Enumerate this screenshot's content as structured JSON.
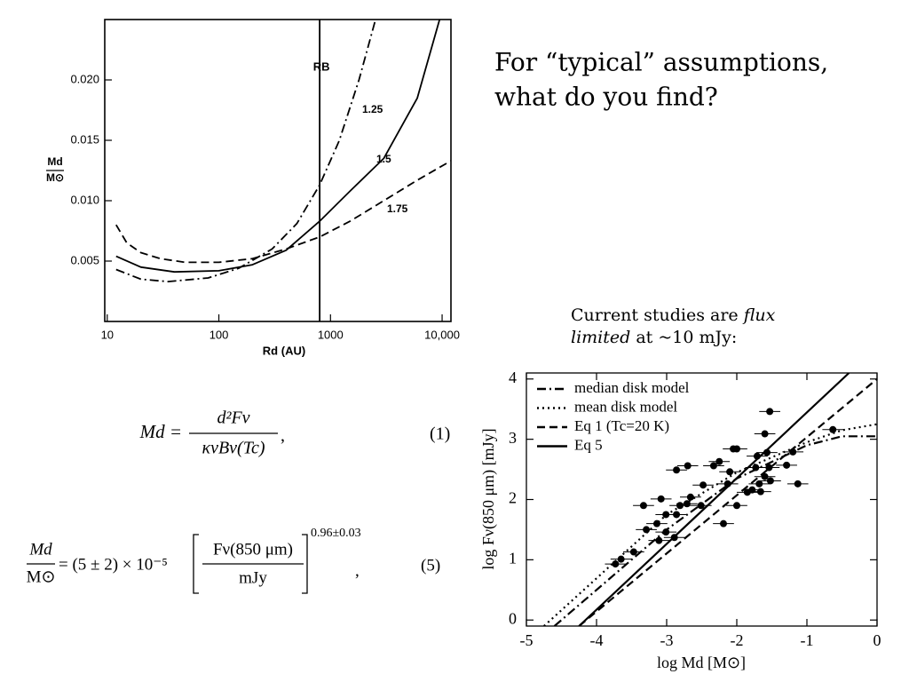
{
  "heading": {
    "lines": [
      "For “typical” assumptions,",
      "what do you find?"
    ]
  },
  "caption": {
    "line1": [
      "Current studies are ",
      "flux"
    ],
    "line2": [
      "limited",
      " at ~10 mJy:"
    ]
  },
  "equations": [
    {
      "lhs": "Md =",
      "numerator": "d²Fν",
      "denominator": "κνBν(Tc)",
      "trail": ",",
      "number": "(1)"
    },
    {
      "lhs_numerator": "Md",
      "lhs_denominator": "M⊙",
      "coefficient": "= (5 ± 2) × 10⁻⁵",
      "numerator": "Fν(850 μm)",
      "denominator": "mJy",
      "exponent": "0.96±0.03",
      "trail": ",",
      "number": "(5)"
    }
  ],
  "chart_data": [
    {
      "type": "line",
      "xlabel": "Rd (AU)",
      "ylabel_numerator": "Md",
      "ylabel_denominator": "M⊙",
      "xscale": "log",
      "xlim": [
        9.5,
        12000
      ],
      "ylim": [
        0,
        0.025
      ],
      "xticks": [
        10,
        100,
        1000,
        {
          "value": 10000,
          "label": "10,000"
        }
      ],
      "yticks": [
        0.005,
        {
          "value": 0.01,
          "label": "0.010"
        },
        0.015,
        {
          "value": 0.02,
          "label": "0.020"
        }
      ],
      "vline": {
        "label": "RB",
        "x": 800
      },
      "series": [
        {
          "name": "1.25",
          "color": "#000000",
          "style": "dashdot",
          "x": [
            12,
            20,
            35,
            80,
            150,
            300,
            500,
            800,
            1200,
            1800,
            2500
          ],
          "values": [
            0.0043,
            0.0035,
            0.0033,
            0.0036,
            0.0044,
            0.006,
            0.0081,
            0.0113,
            0.015,
            0.02,
            0.0248
          ]
        },
        {
          "name": "1.5",
          "color": "#000000",
          "style": "solid",
          "x": [
            12,
            20,
            40,
            100,
            200,
            400,
            800,
            1500,
            3000,
            6000,
            9500
          ],
          "values": [
            0.0054,
            0.0045,
            0.0041,
            0.0042,
            0.0047,
            0.0059,
            0.0083,
            0.0108,
            0.0135,
            0.0185,
            0.025
          ]
        },
        {
          "name": "1.75",
          "color": "#000000",
          "style": "dashed",
          "x": [
            12,
            15,
            20,
            30,
            50,
            100,
            200,
            400,
            800,
            1500,
            3000,
            6000,
            12000
          ],
          "values": [
            0.008,
            0.0065,
            0.0057,
            0.0052,
            0.0049,
            0.0049,
            0.0052,
            0.006,
            0.007,
            0.0083,
            0.01,
            0.0117,
            0.0133
          ]
        }
      ]
    },
    {
      "type": "scatter",
      "xlabel": "log Md [M⊙]",
      "ylabel": "log Fν(850 μm) [mJy]",
      "xlim": [
        -5,
        0
      ],
      "ylim": [
        -0.1,
        4.1
      ],
      "xticks": [
        -5,
        -4,
        -3,
        -2,
        -1,
        0
      ],
      "yticks": [
        0,
        1,
        2,
        3,
        4
      ],
      "legend": "upper left",
      "series": [
        {
          "name": "median disk model",
          "color": "#000000",
          "style": "dashdot",
          "x": [
            -4.6,
            -3,
            -2,
            -1,
            -0.5,
            0
          ],
          "values": [
            -0.1,
            1.5,
            2.35,
            2.9,
            3.05,
            3.05
          ]
        },
        {
          "name": "mean disk model",
          "color": "#000000",
          "style": "dotted",
          "x": [
            -4.75,
            -3,
            -2,
            -1,
            -0.5,
            0
          ],
          "values": [
            -0.1,
            1.75,
            2.45,
            2.95,
            3.15,
            3.25
          ]
        },
        {
          "name": "Eq 1 (Tc=20 K)",
          "color": "#000000",
          "style": "dashed",
          "x": [
            -4.25,
            0
          ],
          "values": [
            -0.1,
            4.0
          ]
        },
        {
          "name": "Eq 5",
          "color": "#000000",
          "style": "solid",
          "x": [
            -4.25,
            -0.4
          ],
          "values": [
            -0.1,
            4.1
          ]
        }
      ],
      "points": {
        "color": "#000000",
        "xerr": 0.15,
        "x": [
          -0.63,
          -1.53,
          -1.6,
          -2.05,
          -2.0,
          -1.13,
          -1.57,
          -1.2,
          -1.29,
          -1.71,
          -1.73,
          -1.54,
          -1.52,
          -1.6,
          -1.68,
          -1.78,
          -1.85,
          -1.66,
          -2.1,
          -2.13,
          -2.25,
          -2.33,
          -2.48,
          -2.7,
          -2.86,
          -2.51,
          -2.66,
          -2.71,
          -2.81,
          -2.0,
          -2.19,
          -3.08,
          -2.86,
          -3.01,
          -3.14,
          -3.29,
          -3.01,
          -3.11,
          -3.33,
          -2.89,
          -3.47,
          -3.65,
          -3.73
        ],
        "values": [
          3.16,
          3.46,
          3.09,
          2.84,
          2.84,
          2.26,
          2.78,
          2.79,
          2.57,
          2.72,
          2.53,
          2.53,
          2.31,
          2.38,
          2.26,
          2.16,
          2.12,
          2.13,
          2.46,
          2.26,
          2.63,
          2.56,
          2.24,
          2.56,
          2.49,
          1.9,
          2.04,
          1.93,
          1.9,
          1.9,
          1.6,
          2.01,
          1.75,
          1.75,
          1.6,
          1.5,
          1.46,
          1.32,
          1.9,
          1.37,
          1.13,
          1.01,
          0.93
        ]
      }
    }
  ]
}
